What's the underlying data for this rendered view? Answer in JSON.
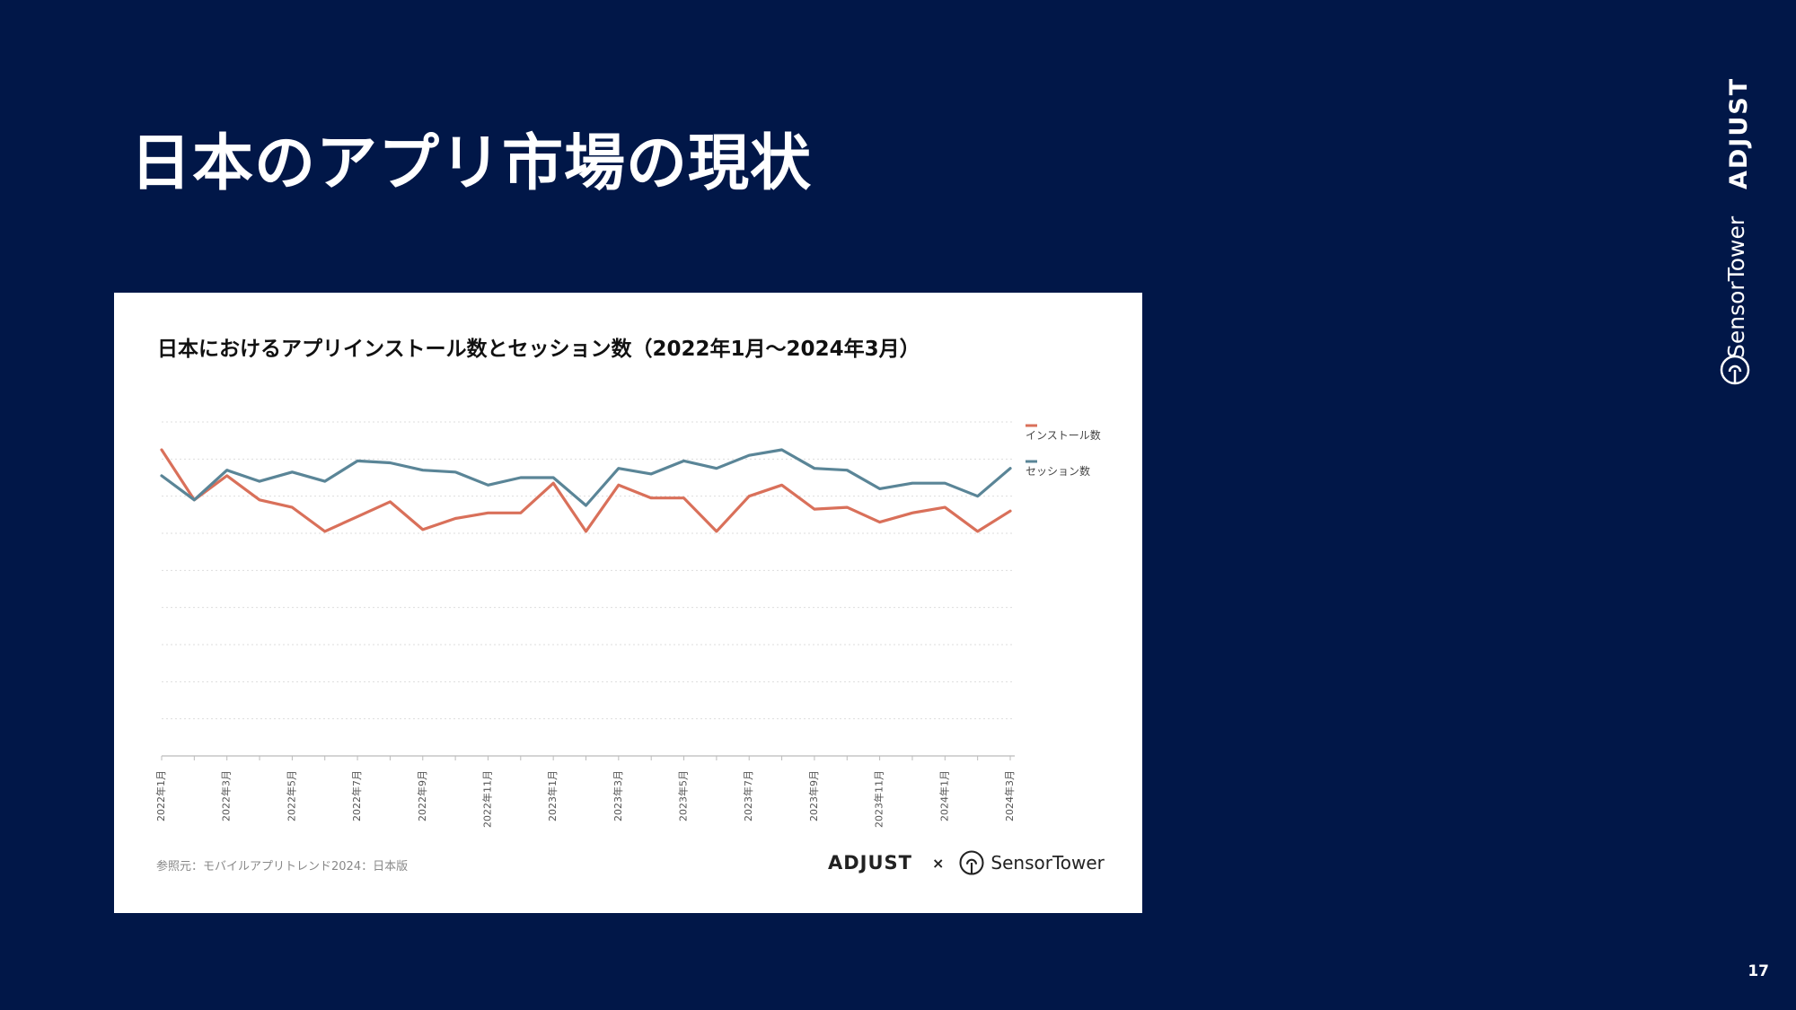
{
  "slide": {
    "title": "日本のアプリ市場の現状",
    "page_number": "17"
  },
  "brands": {
    "adjust": "ADJUST",
    "sensor_tower": "SensorTower",
    "cross": "×"
  },
  "card": {
    "source_note": "参照元：モバイルアプリトレンド2024：日本版"
  },
  "colors": {
    "background": "#011748",
    "install": "#d9705a",
    "session": "#5a8597",
    "grid": "#dddddd"
  },
  "chart_data": {
    "type": "line",
    "title": "日本におけるアプリインストール数とセッション数（2022年1月〜2024年3月）",
    "xlabel": "",
    "ylabel": "",
    "y_axis_labels_shown": false,
    "ylim": [
      0,
      9
    ],
    "grid": true,
    "legend_position": "right-top",
    "x": [
      "2022年1月",
      "2022年2月",
      "2022年3月",
      "2022年4月",
      "2022年5月",
      "2022年6月",
      "2022年7月",
      "2022年8月",
      "2022年9月",
      "2022年10月",
      "2022年11月",
      "2022年12月",
      "2023年1月",
      "2023年2月",
      "2023年3月",
      "2023年4月",
      "2023年5月",
      "2023年6月",
      "2023年7月",
      "2023年8月",
      "2023年9月",
      "2023年10月",
      "2023年11月",
      "2023年12月",
      "2024年1月",
      "2024年2月",
      "2024年3月"
    ],
    "x_tick_labels": [
      "2022年1月",
      "2022年3月",
      "2022年5月",
      "2022年7月",
      "2022年9月",
      "2022年11月",
      "2023年1月",
      "2023年3月",
      "2023年5月",
      "2023年7月",
      "2023年9月",
      "2023年11月",
      "2024年1月",
      "2024年3月"
    ],
    "series": [
      {
        "name": "インストール数",
        "color": "#d9705a",
        "values": [
          8.25,
          6.9,
          7.55,
          6.9,
          6.7,
          6.05,
          6.45,
          6.85,
          6.1,
          6.4,
          6.55,
          6.55,
          7.35,
          6.05,
          7.3,
          6.95,
          6.95,
          6.05,
          7.0,
          7.3,
          6.65,
          6.7,
          6.3,
          6.55,
          6.7,
          6.05,
          6.6
        ]
      },
      {
        "name": "セッション数",
        "color": "#5a8597",
        "values": [
          7.55,
          6.9,
          7.7,
          7.4,
          7.65,
          7.4,
          7.95,
          7.9,
          7.7,
          7.65,
          7.3,
          7.5,
          7.5,
          6.75,
          7.75,
          7.6,
          7.95,
          7.75,
          8.1,
          8.25,
          7.75,
          7.7,
          7.2,
          7.35,
          7.35,
          7.0,
          7.75
        ]
      }
    ]
  }
}
